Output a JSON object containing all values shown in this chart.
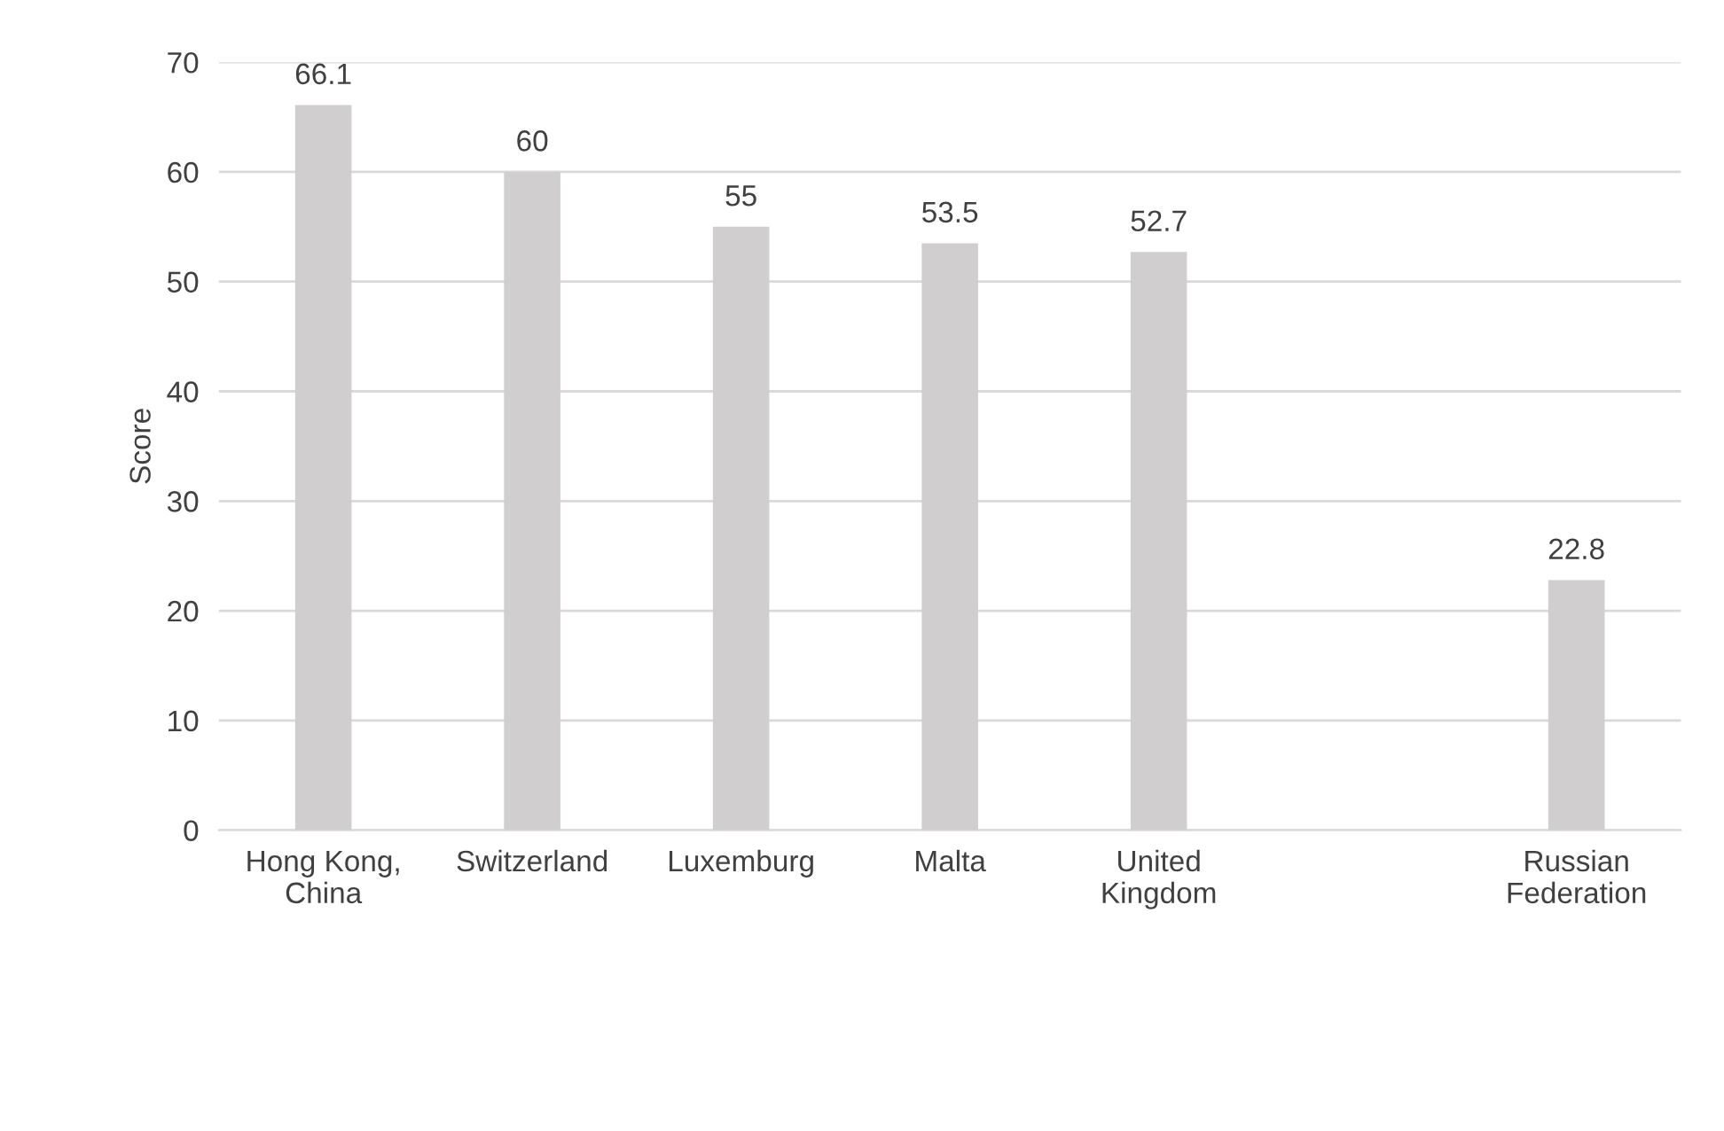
{
  "chart_data": {
    "type": "bar",
    "ylabel": "Score",
    "categories": [
      "Hong Kong, China",
      "Switzerland",
      "Luxemburg",
      "Malta",
      "United Kingdom",
      null,
      "Russian Federation"
    ],
    "values": [
      66.1,
      60,
      55,
      53.5,
      52.7,
      null,
      22.8
    ],
    "color": "#d0cece",
    "ylim": [
      0,
      70
    ],
    "yticks": [
      0,
      10,
      20,
      30,
      40,
      50,
      60,
      70
    ],
    "grid": "y",
    "data_labels": true
  }
}
